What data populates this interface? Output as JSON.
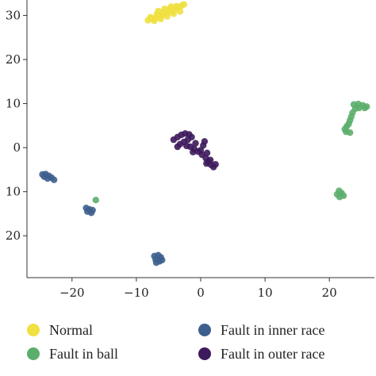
{
  "chart_data": {
    "type": "scatter",
    "title": "",
    "xlabel": "",
    "ylabel": "",
    "xlim": [
      -27,
      27
    ],
    "ylim": [
      -29.5,
      33.5
    ],
    "x_ticks": [
      -20,
      -10,
      0,
      10,
      20
    ],
    "x_tick_labels": [
      "−20",
      "−10",
      "0",
      "10",
      "20"
    ],
    "y_ticks": [
      30,
      20,
      10,
      0,
      -10,
      -20
    ],
    "y_tick_labels": [
      "30",
      "20",
      "10",
      "0",
      "10",
      "20"
    ],
    "grid": false,
    "legend_position": "bottom",
    "series": [
      {
        "name": "Normal",
        "color": "#f0e040",
        "points": [
          [
            -8.2,
            28.9
          ],
          [
            -7.6,
            29.2
          ],
          [
            -7.0,
            29.5
          ],
          [
            -6.5,
            29.8
          ],
          [
            -6.0,
            30.1
          ],
          [
            -5.5,
            30.4
          ],
          [
            -5.0,
            30.7
          ],
          [
            -4.5,
            31.0
          ],
          [
            -4.0,
            31.4
          ],
          [
            -3.5,
            31.8
          ],
          [
            -3.0,
            32.2
          ],
          [
            -2.6,
            32.5
          ],
          [
            -7.8,
            29.6
          ],
          [
            -6.8,
            30.3
          ],
          [
            -5.8,
            30.9
          ],
          [
            -4.8,
            31.5
          ],
          [
            -3.8,
            32.1
          ],
          [
            -7.2,
            28.8
          ],
          [
            -6.2,
            29.2
          ],
          [
            -5.2,
            29.8
          ],
          [
            -4.2,
            30.4
          ],
          [
            -3.2,
            30.9
          ],
          [
            -6.6,
            31.0
          ],
          [
            -5.6,
            31.5
          ],
          [
            -4.6,
            32.0
          ]
        ]
      },
      {
        "name": "Fault in ball",
        "color": "#5cae6b",
        "points": [
          [
            23.8,
            9.8
          ],
          [
            24.5,
            9.9
          ],
          [
            25.2,
            9.6
          ],
          [
            25.8,
            9.3
          ],
          [
            24.0,
            8.8
          ],
          [
            23.6,
            7.9
          ],
          [
            23.4,
            7.0
          ],
          [
            23.2,
            6.2
          ],
          [
            23.0,
            5.4
          ],
          [
            22.7,
            4.8
          ],
          [
            22.4,
            4.2
          ],
          [
            22.6,
            3.6
          ],
          [
            23.2,
            3.4
          ],
          [
            24.6,
            9.0
          ],
          [
            25.5,
            9.0
          ],
          [
            21.5,
            -9.8
          ],
          [
            21.9,
            -10.3
          ],
          [
            22.2,
            -10.9
          ],
          [
            21.6,
            -11.2
          ],
          [
            21.2,
            -10.6
          ],
          [
            -16.3,
            -11.9
          ]
        ]
      },
      {
        "name": "Fault in inner race",
        "color": "#3d5f8e",
        "points": [
          [
            -24.6,
            -6.1
          ],
          [
            -24.1,
            -6.0
          ],
          [
            -23.6,
            -6.4
          ],
          [
            -23.2,
            -6.8
          ],
          [
            -22.8,
            -7.3
          ],
          [
            -24.3,
            -6.6
          ],
          [
            -23.8,
            -7.0
          ],
          [
            -17.8,
            -13.7
          ],
          [
            -17.3,
            -14.0
          ],
          [
            -17.6,
            -14.5
          ],
          [
            -17.0,
            -14.8
          ],
          [
            -16.8,
            -14.2
          ],
          [
            -7.2,
            -24.6
          ],
          [
            -6.6,
            -24.4
          ],
          [
            -6.2,
            -24.9
          ],
          [
            -7.0,
            -25.4
          ],
          [
            -6.4,
            -25.8
          ],
          [
            -6.9,
            -26.1
          ],
          [
            -6.0,
            -25.5
          ]
        ]
      },
      {
        "name": "Fault in outer race",
        "color": "#3d1a5c",
        "points": [
          [
            -4.2,
            1.8
          ],
          [
            -3.6,
            2.4
          ],
          [
            -3.0,
            2.9
          ],
          [
            -2.4,
            3.2
          ],
          [
            -1.8,
            3.0
          ],
          [
            -1.4,
            2.4
          ],
          [
            -2.0,
            1.8
          ],
          [
            -2.6,
            1.3
          ],
          [
            -3.2,
            0.8
          ],
          [
            -2.2,
            0.4
          ],
          [
            -1.6,
            0.2
          ],
          [
            -1.0,
            -0.3
          ],
          [
            -0.4,
            -0.9
          ],
          [
            0.2,
            -1.6
          ],
          [
            0.8,
            -2.4
          ],
          [
            1.2,
            -3.2
          ],
          [
            1.6,
            -3.9
          ],
          [
            2.0,
            -4.4
          ],
          [
            2.3,
            -3.8
          ],
          [
            1.0,
            -1.2
          ],
          [
            0.0,
            -0.6
          ],
          [
            -0.8,
            1.0
          ],
          [
            0.4,
            0.5
          ],
          [
            0.6,
            1.4
          ],
          [
            -1.2,
            -1.0
          ],
          [
            -3.6,
            0.2
          ],
          [
            1.5,
            -2.8
          ],
          [
            0.9,
            -3.6
          ]
        ]
      }
    ]
  },
  "legend": [
    {
      "label": "Normal",
      "color": "#f0e040"
    },
    {
      "label": "Fault in ball",
      "color": "#5cae6b"
    },
    {
      "label": "Fault in inner race",
      "color": "#3d5f8e"
    },
    {
      "label": "Fault in outer race",
      "color": "#3d1a5c"
    }
  ]
}
